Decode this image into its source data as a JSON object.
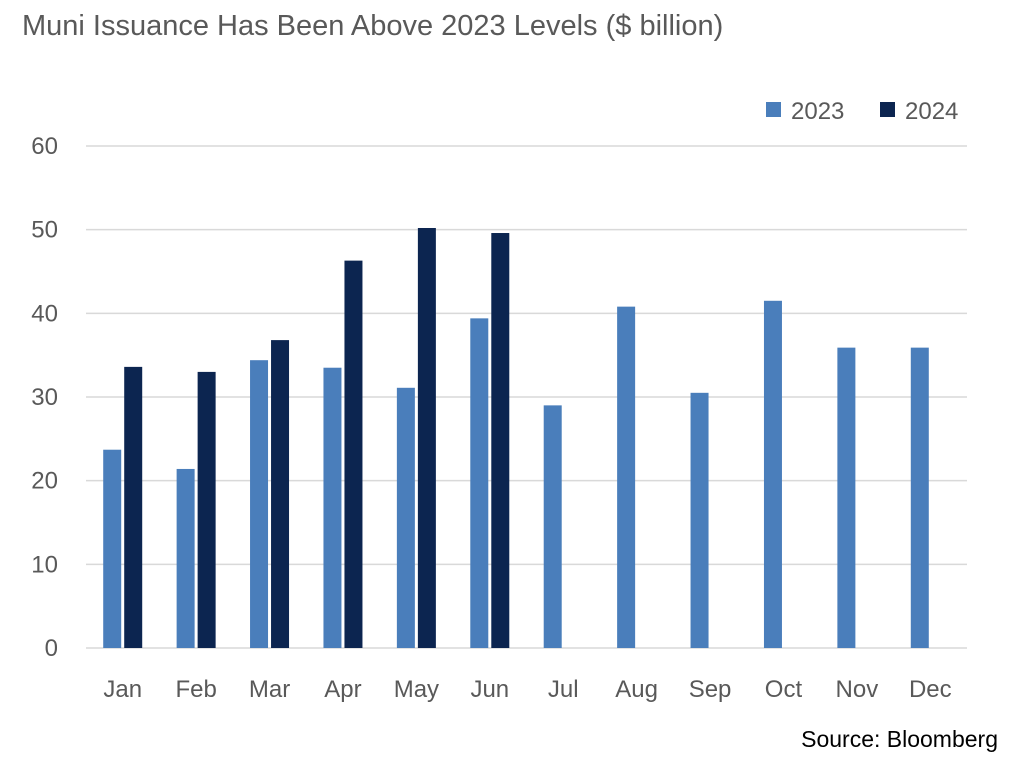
{
  "chart_data": {
    "type": "bar",
    "title": "Muni Issuance Has Been Above 2023 Levels ($ billion)",
    "categories": [
      "Jan",
      "Feb",
      "Mar",
      "Apr",
      "May",
      "Jun",
      "Jul",
      "Aug",
      "Sep",
      "Oct",
      "Nov",
      "Dec"
    ],
    "series": [
      {
        "name": "2023",
        "color": "#4a7ebb",
        "values": [
          23.7,
          21.4,
          34.4,
          33.5,
          31.1,
          39.4,
          29.0,
          40.8,
          30.5,
          41.5,
          35.9,
          35.9
        ]
      },
      {
        "name": "2024",
        "color": "#0c2550",
        "values": [
          33.6,
          33.0,
          36.8,
          46.3,
          50.2,
          49.6,
          null,
          null,
          null,
          null,
          null,
          null
        ]
      }
    ],
    "ylim": [
      0,
      60
    ],
    "yticks": [
      0,
      10,
      20,
      30,
      40,
      50,
      60
    ],
    "grid": true,
    "legend": "top-right",
    "xlabel": "",
    "ylabel": ""
  },
  "source": "Source: Bloomberg"
}
